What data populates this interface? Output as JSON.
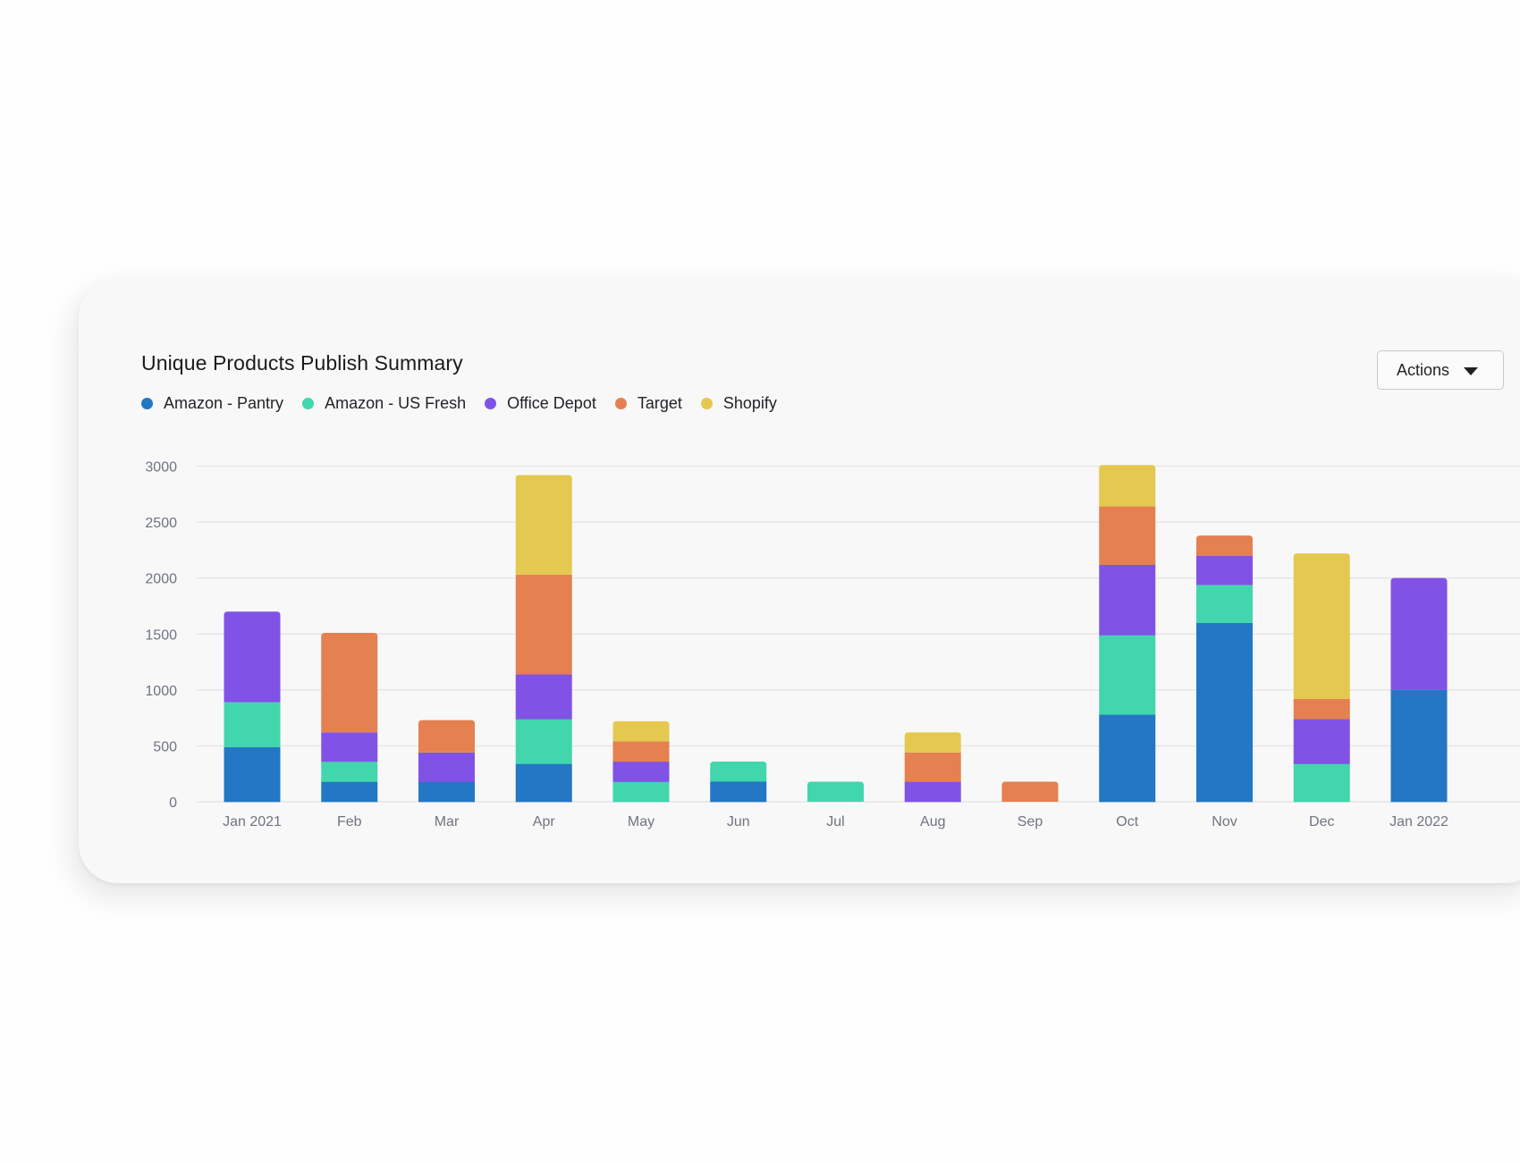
{
  "title": "Unique Products Publish Summary",
  "actions_button": {
    "label": "Actions",
    "icon": "chevron-down-icon"
  },
  "colors": {
    "grid": "#e5e5e7",
    "axis_text": "#6f7480"
  },
  "chart_data": {
    "type": "bar",
    "stacked": true,
    "title": "Unique Products Publish Summary",
    "categories": [
      "Jan 2021",
      "Feb",
      "Mar",
      "Apr",
      "May",
      "Jun",
      "Jul",
      "Aug",
      "Sep",
      "Oct",
      "Nov",
      "Dec",
      "Jan 2022"
    ],
    "series": [
      {
        "name": "Amazon - Pantry",
        "color": "#2377c4",
        "values": [
          490,
          180,
          180,
          340,
          0,
          180,
          0,
          0,
          0,
          780,
          1600,
          0,
          1000
        ]
      },
      {
        "name": "Amazon - US Fresh",
        "color": "#42d6ad",
        "values": [
          400,
          180,
          0,
          400,
          180,
          180,
          180,
          0,
          0,
          710,
          340,
          340,
          0
        ]
      },
      {
        "name": "Office Depot",
        "color": "#8152e6",
        "values": [
          810,
          260,
          260,
          400,
          180,
          0,
          0,
          180,
          0,
          630,
          260,
          400,
          1000
        ]
      },
      {
        "name": "Target",
        "color": "#e58050",
        "values": [
          0,
          890,
          290,
          890,
          180,
          0,
          0,
          260,
          180,
          520,
          180,
          180,
          0
        ]
      },
      {
        "name": "Shopify",
        "color": "#e4c84f",
        "values": [
          0,
          0,
          0,
          890,
          180,
          0,
          0,
          180,
          0,
          370,
          0,
          1300,
          0
        ]
      }
    ],
    "yticks": [
      0,
      500,
      1000,
      1500,
      2000,
      2500,
      3000
    ],
    "ylim": [
      0,
      3000
    ],
    "grid": true,
    "legend": "top-left",
    "xlabel": "",
    "ylabel": ""
  }
}
